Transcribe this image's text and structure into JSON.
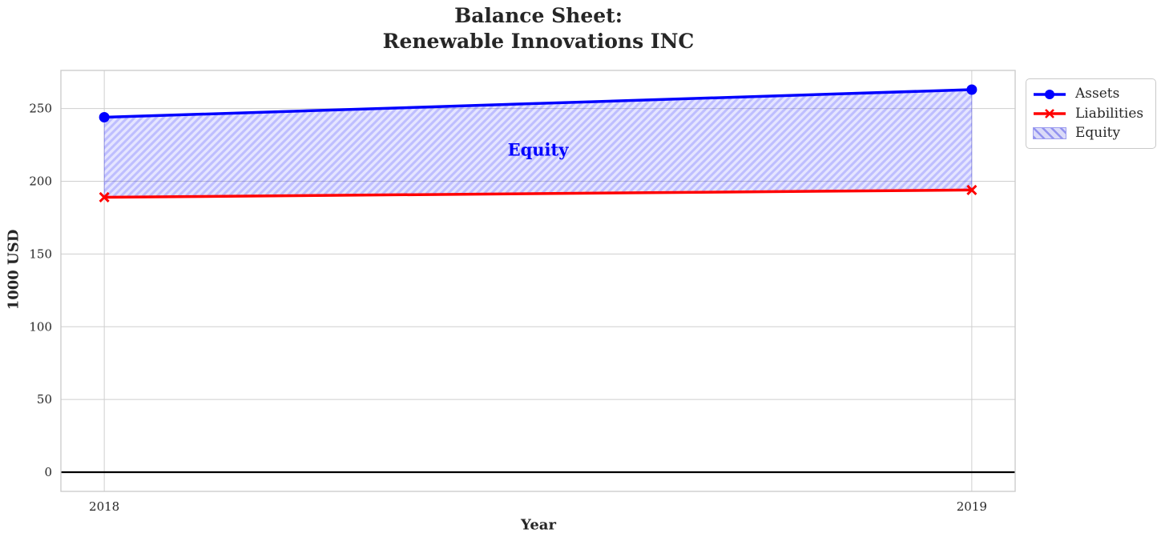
{
  "chart_data": {
    "type": "line",
    "title": "Balance Sheet:\nRenewable Innovations INC",
    "xlabel": "Year",
    "ylabel": "1000 USD",
    "x": [
      2018,
      2019
    ],
    "series": [
      {
        "name": "Assets",
        "values": [
          244,
          263
        ],
        "color": "#0000ff",
        "marker": "circle"
      },
      {
        "name": "Liabilities",
        "values": [
          189,
          194
        ],
        "color": "#ff0000",
        "marker": "x"
      }
    ],
    "fill_between": {
      "label": "Equity",
      "between": [
        "Assets",
        "Liabilities"
      ],
      "values": [
        55,
        69
      ],
      "fill_color": "rgba(0,0,255,0.10)",
      "hatch_color": "rgba(0,0,255,0.17)",
      "edge_color": "rgba(0,0,255,0.25)",
      "legend_fill": "#dadaf8",
      "legend_hatch": "#9292ef",
      "annotation": {
        "text": "Equity",
        "x": 2018.5,
        "y": 222,
        "color": "#0000ff"
      }
    },
    "xticks": [
      2018,
      2019
    ],
    "yticks": [
      0,
      50,
      100,
      150,
      200,
      250
    ],
    "xlim": [
      2017.95,
      2019.05
    ],
    "ylim": [
      -13.2,
      276.2
    ],
    "grid": true,
    "grid_color": "#cfcfcf",
    "spine_color": "#c9c9c9",
    "zero_line": {
      "y": 0,
      "color": "#000000"
    },
    "legend": {
      "position": "upper-right-outside",
      "entries": [
        "Assets",
        "Liabilities",
        "Equity"
      ]
    }
  }
}
